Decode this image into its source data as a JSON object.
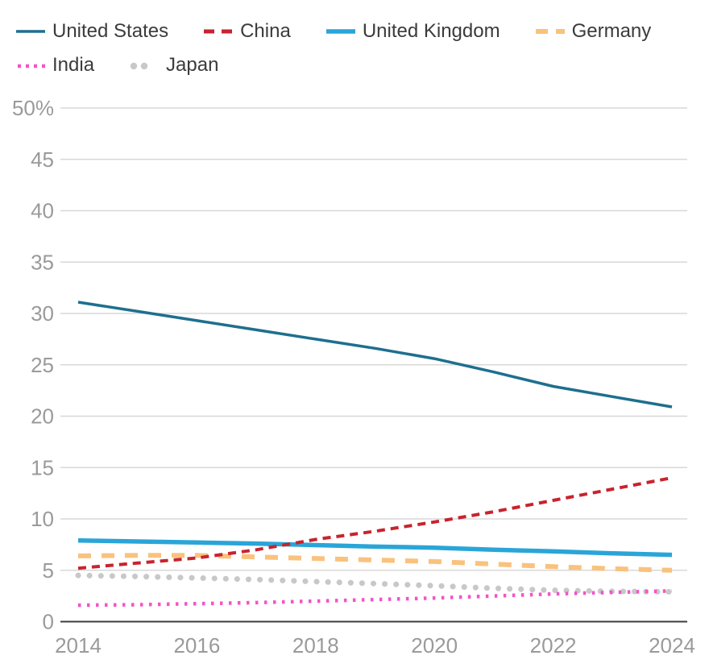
{
  "legend": {
    "items": [
      {
        "label": "United States",
        "color": "#1e6f8e",
        "swatch": "solid-thin"
      },
      {
        "label": "China",
        "color": "#c8232e",
        "swatch": "dashed"
      },
      {
        "label": "United Kingdom",
        "color": "#2aa5d8",
        "swatch": "solid-thick"
      },
      {
        "label": "Germany",
        "color": "#f9c27d",
        "swatch": "dashed-thick"
      },
      {
        "label": "India",
        "color": "#f254c8",
        "swatch": "dotted-small"
      },
      {
        "label": "Japan",
        "color": "#c8c8c8",
        "swatch": "dotted-round"
      }
    ]
  },
  "chart_data": {
    "type": "line",
    "title": "",
    "xlabel": "",
    "ylabel": "",
    "x": [
      2014,
      2015,
      2016,
      2017,
      2018,
      2019,
      2020,
      2021,
      2022,
      2023,
      2024
    ],
    "x_tick_years": [
      2014,
      2016,
      2018,
      2020,
      2022,
      2024
    ],
    "x_tick_labels": [
      "2014",
      "2016",
      "2018",
      "2020",
      "2022",
      "2024"
    ],
    "y_ticks": [
      0,
      5,
      10,
      15,
      20,
      25,
      30,
      35,
      40,
      45,
      50
    ],
    "y_tick_labels": [
      "0",
      "5",
      "10",
      "15",
      "20",
      "25",
      "30",
      "35",
      "40",
      "45",
      "50%"
    ],
    "ylim": [
      0,
      50
    ],
    "grid": true,
    "legend_position": "top",
    "series": [
      {
        "name": "United States",
        "color": "#1e6f8e",
        "line_style": "solid",
        "values": [
          31.1,
          30.2,
          29.3,
          28.4,
          27.5,
          26.6,
          25.6,
          24.3,
          22.9,
          21.9,
          20.9
        ]
      },
      {
        "name": "China",
        "color": "#c8232e",
        "line_style": "dashed",
        "values": [
          5.2,
          5.7,
          6.2,
          7.0,
          8.0,
          8.8,
          9.7,
          10.7,
          11.8,
          12.9,
          14.0
        ]
      },
      {
        "name": "United Kingdom",
        "color": "#2aa5d8",
        "line_style": "solid",
        "values": [
          7.9,
          7.8,
          7.7,
          7.6,
          7.45,
          7.3,
          7.2,
          7.0,
          6.85,
          6.65,
          6.5
        ]
      },
      {
        "name": "Germany",
        "color": "#f9c27d",
        "line_style": "dashed",
        "values": [
          6.4,
          6.45,
          6.45,
          6.3,
          6.15,
          6.0,
          5.85,
          5.6,
          5.35,
          5.15,
          5.0
        ]
      },
      {
        "name": "India",
        "color": "#f254c8",
        "line_style": "dotted",
        "values": [
          1.6,
          1.65,
          1.75,
          1.85,
          2.0,
          2.15,
          2.3,
          2.5,
          2.7,
          2.85,
          3.0
        ]
      },
      {
        "name": "Japan",
        "color": "#c8c8c8",
        "line_style": "dotted",
        "values": [
          4.5,
          4.4,
          4.25,
          4.1,
          3.9,
          3.7,
          3.5,
          3.25,
          3.05,
          2.95,
          2.9
        ]
      }
    ]
  }
}
